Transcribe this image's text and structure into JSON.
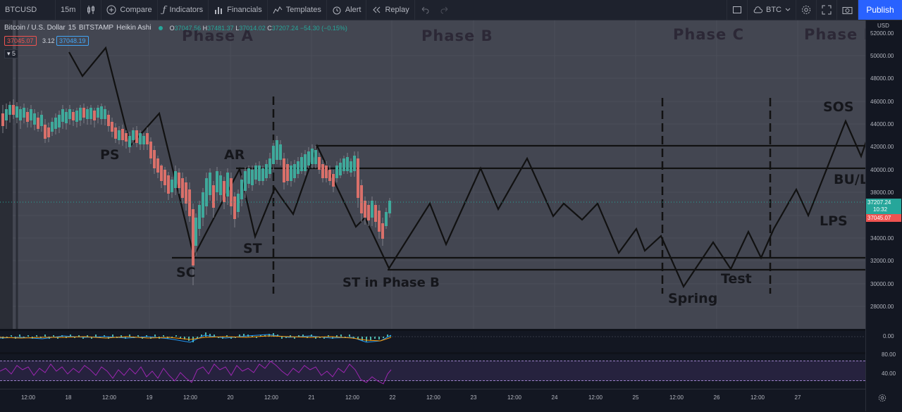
{
  "toolbar": {
    "symbol": "BTCUSD",
    "interval": "15m",
    "compare": "Compare",
    "indicators": "Indicators",
    "financials": "Financials",
    "templates": "Templates",
    "alert": "Alert",
    "replay": "Replay",
    "currency": "BTC",
    "publish": "Publish"
  },
  "legend": {
    "title": "Bitcoin / U.S. Dollar",
    "interval": "15",
    "exchange": "BITSTAMP",
    "style": "Heikin Ashi",
    "o_label": "O",
    "o": "37047.56",
    "h_label": "H",
    "h": "37481.37",
    "l_label": "L",
    "l": "37014.02",
    "c_label": "C",
    "c": "37207.24",
    "change": "−54.30 (−0.15%)",
    "bid": "37045.07",
    "spread": "3.12",
    "ask": "37048.19",
    "collapse_count": "5"
  },
  "labels": {
    "phase_a": "Phase A",
    "phase_b": "Phase B",
    "phase_c": "Phase C",
    "phase_d": "Phase D",
    "ps": "PS",
    "ar": "AR",
    "st": "ST",
    "sc": "SC",
    "st_b": "ST in Phase B",
    "spring": "Spring",
    "test": "Test",
    "sos": "SOS",
    "bu_lps": "BU/LPS",
    "lps": "LPS"
  },
  "price_axis": {
    "currency": "USD",
    "ticks": [
      "52000.00",
      "50000.00",
      "48000.00",
      "46000.00",
      "44000.00",
      "42000.00",
      "40000.00",
      "38000.00",
      "36000.00",
      "34000.00",
      "32000.00",
      "30000.00",
      "28000.00"
    ],
    "last_price": "37207.24",
    "countdown": "10:32",
    "bid_tag": "37045.07",
    "osc_zero": "0.00",
    "rsi_high": "80.00",
    "rsi_low": "40.00"
  },
  "time_axis": {
    "ticks": [
      "12:00",
      "18",
      "12:00",
      "19",
      "12:00",
      "20",
      "12:00",
      "21",
      "12:00",
      "22",
      "12:00",
      "23",
      "12:00",
      "24",
      "12:00",
      "25",
      "12:00",
      "26",
      "12:00",
      "27"
    ]
  },
  "colors": {
    "up": "#26a69a",
    "down": "#ef5350",
    "accent": "#2962ff",
    "rsi": "#9c27b0"
  }
}
